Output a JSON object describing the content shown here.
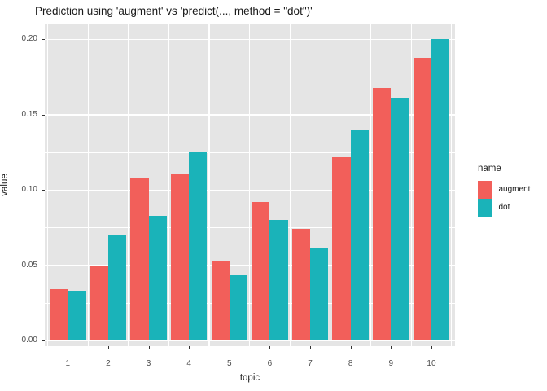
{
  "title": "Prediction using 'augment' vs 'predict(..., method = \"dot\")'",
  "chart_data": {
    "type": "bar",
    "bar_mode": "dodge",
    "title": "Prediction using 'augment' vs 'predict(..., method = \"dot\")'",
    "xlabel": "topic",
    "ylabel": "value",
    "categories": [
      "1",
      "2",
      "3",
      "4",
      "5",
      "6",
      "7",
      "8",
      "9",
      "10"
    ],
    "series": [
      {
        "name": "augment",
        "color": "#F25F5A",
        "values": [
          0.034,
          0.05,
          0.108,
          0.111,
          0.053,
          0.092,
          0.074,
          0.122,
          0.168,
          0.188
        ]
      },
      {
        "name": "dot",
        "color": "#1AB3B9",
        "values": [
          0.033,
          0.07,
          0.083,
          0.125,
          0.044,
          0.08,
          0.062,
          0.14,
          0.161,
          0.2
        ]
      }
    ],
    "ylim": [
      0,
      0.205
    ],
    "yticks": {
      "values": [
        0,
        0.05,
        0.1,
        0.15,
        0.2
      ],
      "labels": [
        "0.00",
        "0.05",
        "0.10",
        "0.15",
        "0.20"
      ]
    },
    "yminor": [
      0.025,
      0.075,
      0.125,
      0.175
    ],
    "grid": true,
    "legend_position": "right",
    "legend": {
      "title": "name"
    },
    "colors": {
      "panel_bg": "#E5E5E5",
      "grid": "#FFFFFF",
      "axis_text": "#4D4D4D"
    }
  }
}
